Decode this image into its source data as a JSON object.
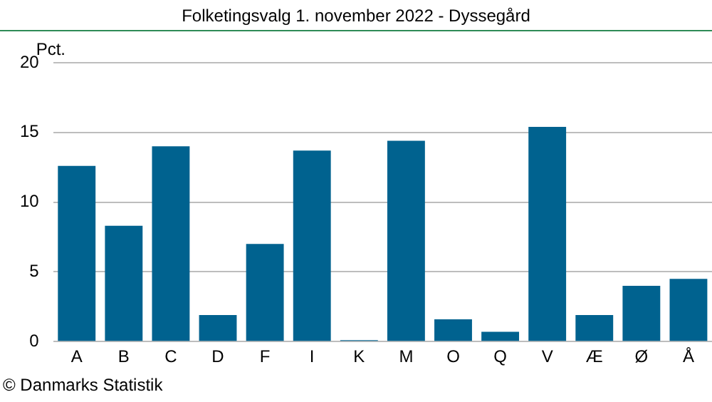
{
  "chart_data": {
    "type": "bar",
    "title": "Folketingsvalg 1. november 2022 - Dyssegård",
    "ylabel": "Pct.",
    "categories": [
      "A",
      "B",
      "C",
      "D",
      "F",
      "I",
      "K",
      "M",
      "O",
      "Q",
      "V",
      "Æ",
      "Ø",
      "Å"
    ],
    "values": [
      12.6,
      8.3,
      14.0,
      1.9,
      7.0,
      13.7,
      0.1,
      14.4,
      1.6,
      0.7,
      15.4,
      1.9,
      4.0,
      4.5
    ],
    "color": "#00628f",
    "ylim": [
      0,
      20
    ],
    "yticks": [
      0,
      5,
      10,
      15,
      20
    ],
    "grid": "y",
    "legend": false,
    "annotations": [
      "© Danmarks Statistik"
    ]
  }
}
